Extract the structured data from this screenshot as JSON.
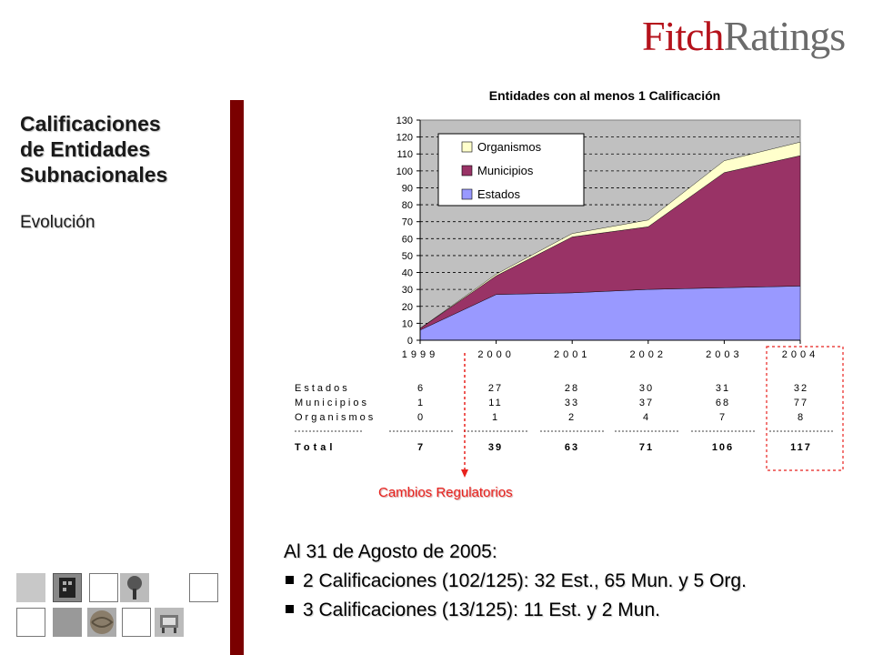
{
  "brand": {
    "logo_part1": "Fitch",
    "logo_part2": "Ratings"
  },
  "sidebar": {
    "title_lines": [
      "Calificaciones",
      "de Entidades",
      "Subnacionales"
    ],
    "subtitle": "Evolución"
  },
  "colors": {
    "estados": "#9999ff",
    "municipios": "#993366",
    "organismos": "#ffffcc",
    "plot_bg": "#c0c0c0",
    "accent_bar": "#7a0000",
    "highlight": "#e8221e"
  },
  "chart_data": {
    "type": "area",
    "stacked": true,
    "title": "Entidades con al menos 1 Calificación",
    "categories": [
      "1999",
      "2000",
      "2001",
      "2002",
      "2003",
      "2004"
    ],
    "series": [
      {
        "name": "Estados",
        "values": [
          6,
          27,
          28,
          30,
          31,
          32
        ]
      },
      {
        "name": "Municipios",
        "values": [
          1,
          11,
          33,
          37,
          68,
          77
        ]
      },
      {
        "name": "Organismos",
        "values": [
          0,
          1,
          2,
          4,
          7,
          8
        ]
      }
    ],
    "ylim": [
      0,
      130
    ],
    "ytick_step": 10,
    "grid": true,
    "legend_position": "top-left",
    "legend_order": [
      "Organismos",
      "Municipios",
      "Estados"
    ]
  },
  "table": {
    "rows": [
      {
        "label": "Estados",
        "values": [
          "6",
          "27",
          "28",
          "30",
          "31",
          "32"
        ]
      },
      {
        "label": "Municipios",
        "values": [
          "1",
          "11",
          "33",
          "37",
          "68",
          "77"
        ]
      },
      {
        "label": "Organismos",
        "values": [
          "0",
          "1",
          "2",
          "4",
          "7",
          "8"
        ]
      }
    ],
    "total_label": "Total",
    "totals": [
      "7",
      "39",
      "63",
      "71",
      "106",
      "117"
    ]
  },
  "annotation": {
    "regulatory_label": "Cambios Regulatorios"
  },
  "notes": {
    "heading": "Al 31 de Agosto de 2005:",
    "bullets": [
      "2 Calificaciones (102/125): 32 Est., 65 Mun. y 5 Org.",
      "3 Calificaciones (13/125): 11 Est. y 2 Mun."
    ]
  }
}
